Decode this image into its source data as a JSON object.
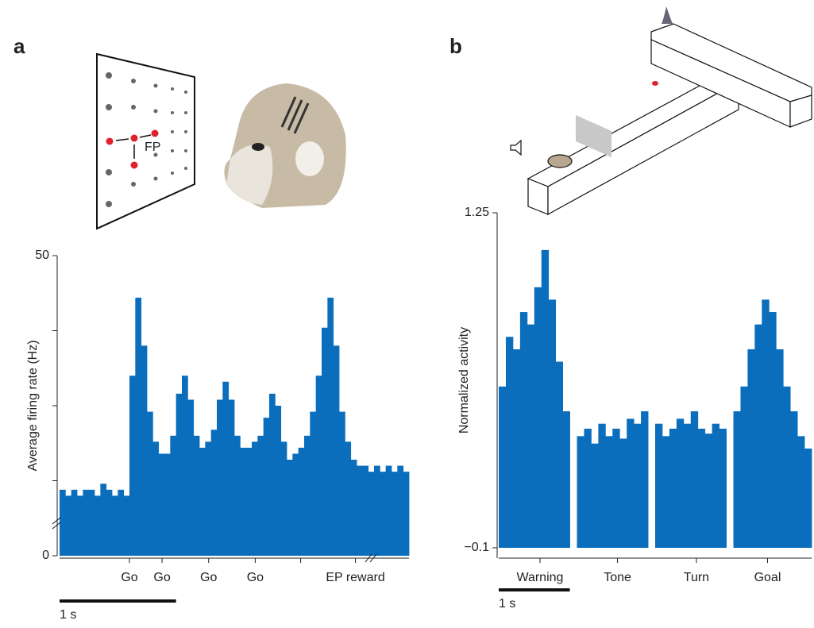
{
  "chart_data": [
    {
      "type": "histogram",
      "panel_label": "a",
      "diagram_label": "FP",
      "y_label": "Average firing rate (Hz)",
      "color": "#0a6ebd",
      "bins": [
        0,
        0.05,
        0.1,
        0.15,
        0.2,
        0.25,
        0.3,
        0.35,
        0.4,
        0.45,
        0.5,
        0.55,
        0.6,
        0.65,
        0.7,
        0.75,
        0.8,
        0.85,
        0.9,
        0.95,
        1.0,
        1.05,
        1.1,
        1.15,
        1.2,
        1.25,
        1.3,
        1.35,
        1.4,
        1.45,
        1.5,
        1.55,
        1.6,
        1.65,
        1.7,
        1.75,
        1.8,
        1.85,
        1.9,
        1.95,
        2.0,
        2.05,
        2.1,
        2.15,
        2.2,
        2.25,
        2.3,
        2.35,
        2.4,
        2.45,
        2.5,
        2.55,
        2.6,
        2.65,
        2.7,
        2.75,
        2.8,
        2.85,
        2.9,
        2.95,
        3.0
      ],
      "values": [
        11,
        10,
        11,
        10,
        11,
        11,
        10,
        12,
        11,
        10,
        11,
        10,
        30,
        43,
        35,
        24,
        19,
        17,
        17,
        20,
        27,
        30,
        26,
        20,
        18,
        19,
        21,
        26,
        29,
        26,
        20,
        18,
        18,
        19,
        20,
        23,
        27,
        25,
        19,
        16,
        17,
        18,
        20,
        24,
        30,
        38,
        43,
        35,
        24,
        19,
        16,
        15,
        15,
        14,
        15,
        14,
        15,
        14,
        15,
        14
      ],
      "xlim": [
        0,
        3.0
      ],
      "ylim": [
        0,
        50
      ],
      "xticks": [
        {
          "value": 0.6,
          "label": "Go"
        },
        {
          "value": 0.88,
          "label": "Go"
        },
        {
          "value": 1.28,
          "label": "Go"
        },
        {
          "value": 1.68,
          "label": "Go"
        },
        {
          "value": 2.54,
          "label": "EP reward"
        }
      ],
      "minor_xticks": [
        2.07
      ],
      "yticks": [
        0,
        50
      ],
      "minor_yticks": [
        12.5,
        25,
        37.5
      ],
      "scale_bar_length": 1,
      "scale_bar_label": "1 s"
    },
    {
      "type": "histogram",
      "panel_label": "b",
      "y_label": "Normalized activity",
      "color": "#0a6ebd",
      "bins": [
        0,
        0.1,
        0.2,
        0.3,
        0.4,
        0.5,
        0.6,
        0.7,
        0.8,
        0.9,
        1.0,
        1.1,
        1.2,
        1.3,
        1.4,
        1.5,
        1.6,
        1.7,
        1.8,
        1.9,
        2.0,
        2.1,
        2.2,
        2.3,
        2.4,
        2.5,
        2.6,
        2.7,
        2.8,
        2.9,
        3.0,
        3.1,
        3.2,
        3.3,
        3.4,
        3.5,
        3.6,
        3.7,
        3.8,
        3.9,
        4.0,
        4.1,
        4.2,
        4.3,
        4.4
      ],
      "values": [
        0.55,
        0.75,
        0.7,
        0.85,
        0.8,
        0.95,
        1.1,
        0.9,
        0.65,
        0.45,
        null,
        0.35,
        0.38,
        0.32,
        0.4,
        0.35,
        0.38,
        0.34,
        0.42,
        0.4,
        0.45,
        null,
        0.4,
        0.35,
        0.38,
        0.42,
        0.4,
        0.45,
        0.38,
        0.36,
        0.4,
        0.38,
        null,
        0.45,
        0.55,
        0.7,
        0.8,
        0.9,
        0.85,
        0.7,
        0.55,
        0.45,
        0.35,
        0.3
      ],
      "xlim": [
        0,
        4.4
      ],
      "ylim": [
        -0.1,
        1.25
      ],
      "xticks": [
        {
          "value": 0.58,
          "label": "Warning"
        },
        {
          "value": 1.67,
          "label": "Tone"
        },
        {
          "value": 2.78,
          "label": "Turn"
        },
        {
          "value": 3.78,
          "label": "Goal"
        }
      ],
      "yticks": [
        {
          "value": -0.1,
          "label": "−0.1"
        },
        1.25
      ],
      "scale_bar_length": 1,
      "scale_bar_label": "1 s"
    }
  ]
}
